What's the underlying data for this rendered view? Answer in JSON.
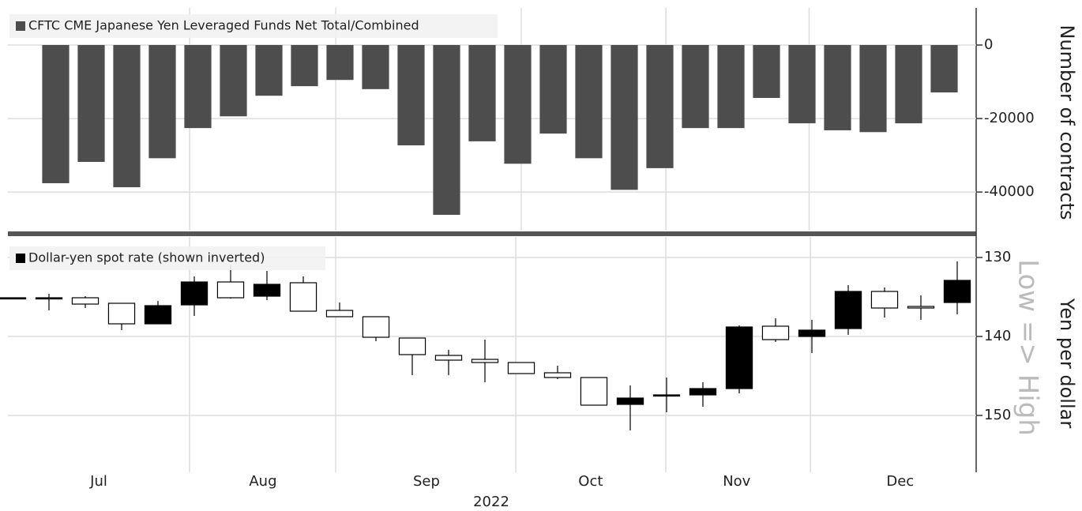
{
  "chart_data": [
    {
      "type": "bar",
      "legend": "CFTC CME Japanese Yen Leveraged Funds Net Total/Combined",
      "y_label": "Number of contracts",
      "categories": [
        null,
        null,
        null,
        null,
        null,
        null,
        null,
        null,
        null,
        null,
        null,
        null,
        null,
        null,
        null,
        null,
        null,
        null,
        null,
        null,
        null,
        null,
        null,
        null,
        null,
        null
      ],
      "values": [
        -37600,
        -31800,
        -38700,
        -30800,
        -22600,
        -19400,
        -13800,
        -11200,
        -9500,
        -12000,
        -27300,
        -46200,
        -26200,
        -32300,
        -24100,
        -30800,
        -39400,
        -33500,
        -22600,
        -22600,
        -14400,
        -21300,
        -23200,
        -23700,
        -21300,
        -12900
      ],
      "color": "#4d4d4d",
      "ylim": [
        -50500,
        10100
      ],
      "yticks": [
        0,
        -20000,
        -40000
      ],
      "xgrid": [
        3.77,
        7.88,
        13.1,
        17.17,
        21.2
      ],
      "grid": true
    },
    {
      "type": "candlestick",
      "legend": "Dollar-yen spot rate (shown inverted)",
      "y_label": "Yen per dollar",
      "annotation": "Low => High",
      "x_label": "2022",
      "categories": [
        null,
        null,
        null,
        null,
        null,
        null,
        null,
        null,
        null,
        null,
        null,
        null,
        null,
        null,
        null,
        null,
        null,
        null,
        null,
        null,
        null,
        null,
        null,
        null,
        null,
        null,
        null
      ],
      "open": [
        135.1,
        135.1,
        135.1,
        135.8,
        138.4,
        136.0,
        133.1,
        134.9,
        133.2,
        136.7,
        137.5,
        140.2,
        142.4,
        142.9,
        143.3,
        144.6,
        145.2,
        148.6,
        147.4,
        147.4,
        146.6,
        138.7,
        140.0,
        139.0,
        134.3,
        136.2,
        135.7
      ],
      "high": [
        135.1,
        136.7,
        136.4,
        139.2,
        138.4,
        137.4,
        135.2,
        135.4,
        136.8,
        137.5,
        140.6,
        144.9,
        144.9,
        145.8,
        144.7,
        145.4,
        148.7,
        151.9,
        149.6,
        148.9,
        147.2,
        140.7,
        142.1,
        139.8,
        137.6,
        137.9,
        137.2
      ],
      "low": [
        135.1,
        134.6,
        134.9,
        135.8,
        135.5,
        132.4,
        130.9,
        131.7,
        132.4,
        135.7,
        137.5,
        140.2,
        141.7,
        140.4,
        143.3,
        143.7,
        145.2,
        146.2,
        145.2,
        145.8,
        138.6,
        137.7,
        137.9,
        133.5,
        133.8,
        134.8,
        130.5
      ],
      "close": [
        135.1,
        135.1,
        135.9,
        138.4,
        136.1,
        133.1,
        135.1,
        133.4,
        136.8,
        137.5,
        140.1,
        142.3,
        143.0,
        143.3,
        144.7,
        145.2,
        148.7,
        147.8,
        147.4,
        146.6,
        138.8,
        140.4,
        139.2,
        134.3,
        136.4,
        136.4,
        132.9
      ],
      "up_color": "#ffffff",
      "down_color": "#000000",
      "ylim": [
        127.4,
        157.2
      ],
      "inverted": true,
      "yticks": [
        130,
        140,
        150
      ],
      "xticks": [
        {
          "value": 2.37,
          "label": "Jul"
        },
        {
          "value": 6.89,
          "label": "Aug"
        },
        {
          "value": 11.39,
          "label": "Sep"
        },
        {
          "value": 15.91,
          "label": "Oct"
        },
        {
          "value": 19.93,
          "label": "Nov"
        },
        {
          "value": 24.43,
          "label": "Dec"
        }
      ],
      "xgrid": [
        4.87,
        8.89,
        13.85,
        17.98,
        21.96
      ],
      "grid": true
    }
  ]
}
